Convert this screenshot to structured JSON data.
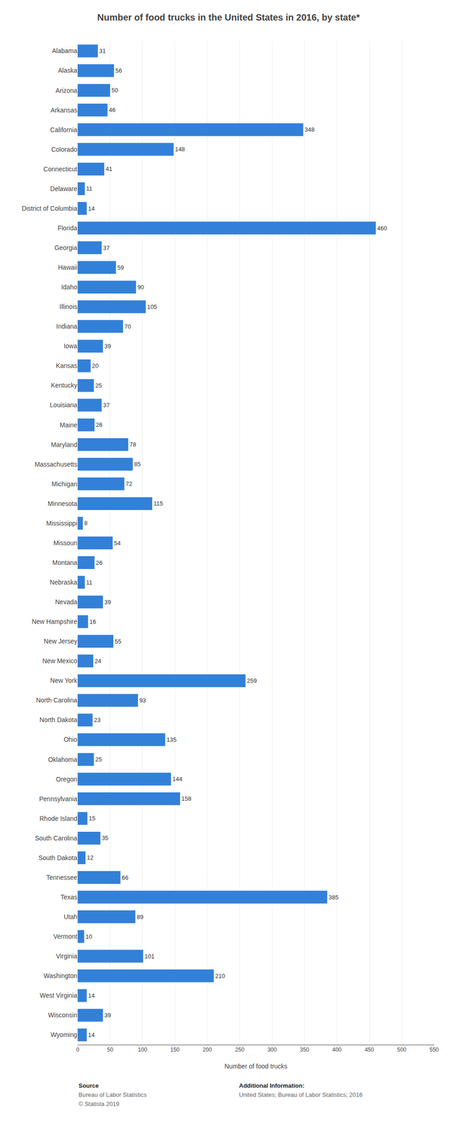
{
  "chart_data": {
    "type": "bar",
    "title": "Number of food trucks in the United States in 2016, by state*",
    "orientation": "horizontal",
    "categories": [
      "Alabama",
      "Alaska",
      "Arizona",
      "Arkansas",
      "California",
      "Colorado",
      "Connecticut",
      "Delaware",
      "District of Columbia",
      "Florida",
      "Georgia",
      "Hawaii",
      "Idaho",
      "Illinois",
      "Indiana",
      "Iowa",
      "Kansas",
      "Kentucky",
      "Louisiana",
      "Maine",
      "Maryland",
      "Massachusetts",
      "Michigan",
      "Minnesota",
      "Mississippi",
      "Missouri",
      "Montana",
      "Nebraska",
      "Nevada",
      "New Hampshire",
      "New Jersey",
      "New Mexico",
      "New York",
      "North Carolina",
      "North Dakota",
      "Ohio",
      "Oklahoma",
      "Oregon",
      "Pennsylvania",
      "Rhode Island",
      "South Carolina",
      "South Dakota",
      "Tennessee",
      "Texas",
      "Utah",
      "Vermont",
      "Virginia",
      "Washington",
      "West Virginia",
      "Wisconsin",
      "Wyoming"
    ],
    "values": [
      31,
      56,
      50,
      46,
      348,
      148,
      41,
      11,
      14,
      460,
      37,
      59,
      90,
      105,
      70,
      39,
      20,
      25,
      37,
      26,
      78,
      85,
      72,
      115,
      8,
      54,
      26,
      11,
      39,
      16,
      55,
      24,
      259,
      93,
      23,
      135,
      25,
      144,
      158,
      15,
      35,
      12,
      66,
      385,
      89,
      10,
      101,
      210,
      14,
      39,
      14
    ],
    "color": "#3380d8",
    "xlabel": "Number of food trucks",
    "xlim": [
      0,
      550
    ],
    "xticks": [
      0,
      50,
      100,
      150,
      200,
      250,
      300,
      350,
      400,
      450,
      500,
      550
    ],
    "grid": true,
    "data_labels": true,
    "annotations": [
      "Source",
      "Bureau of Labor Statistics",
      "© Statista 2019",
      "Additional Information:",
      "United States; Bureau of Labor Statistics; 2016"
    ]
  }
}
